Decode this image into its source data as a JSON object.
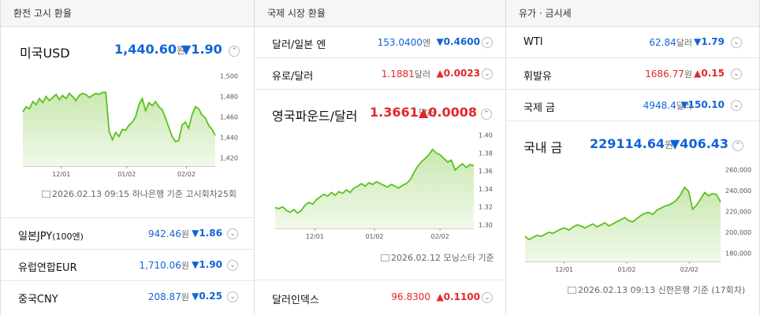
{
  "col1": {
    "header": "환전 고시 환율",
    "main": {
      "name": "미국USD",
      "value": "1,440.60",
      "unit": "원",
      "change": "▼1.90"
    },
    "chart": {
      "y_ticks": [
        "1,500",
        "1,480",
        "1,460",
        "1,440",
        "1,420"
      ],
      "x_ticks": [
        "12/01",
        "01/02",
        "02/02"
      ],
      "series": [
        1465,
        1470,
        1468,
        1475,
        1472,
        1478,
        1474,
        1480,
        1476,
        1479,
        1482,
        1477,
        1481,
        1478,
        1483,
        1480,
        1476,
        1481,
        1483,
        1482,
        1479,
        1481,
        1483,
        1482,
        1484,
        1484,
        1446,
        1438,
        1445,
        1441,
        1448,
        1447,
        1452,
        1455,
        1460,
        1472,
        1478,
        1466,
        1474,
        1471,
        1475,
        1470,
        1467,
        1459,
        1450,
        1441,
        1436,
        1437,
        1452,
        1455,
        1449,
        1462,
        1470,
        1468,
        1462,
        1459,
        1452,
        1448,
        1442
      ]
    },
    "footnote": "2026.02.13 09:15 하나은행 기준  고시회차25회",
    "rows": [
      {
        "name": "일본JPY",
        "name_sub": "(100엔)",
        "value": "942.46",
        "unit": "원",
        "change": "▼1.86"
      },
      {
        "name": "유럽연합EUR",
        "value": "1,710.06",
        "unit": "원",
        "change": "▼1.90"
      },
      {
        "name": "중국CNY",
        "value": "208.87",
        "unit": "원",
        "change": "▼0.25"
      }
    ]
  },
  "col2": {
    "header": "국제 시장 환율",
    "rows_top": [
      {
        "name": "달러/일본 엔",
        "value": "153.0400",
        "unit": "엔",
        "change": "▼0.4600",
        "color": "#1163d8"
      },
      {
        "name": "유로/달러",
        "value": "1.1881",
        "unit": "달러",
        "change": "▲0.0023",
        "color": "#e2272d"
      }
    ],
    "main": {
      "name": "영국파운드/달러",
      "value": "1.3661",
      "unit": "달러",
      "change": "▲0.0008"
    },
    "chart": {
      "y_ticks": [
        "1.40",
        "1.38",
        "1.36",
        "1.34",
        "1.32",
        "1.30"
      ],
      "x_ticks": [
        "12/01",
        "01/02",
        "02/02"
      ],
      "series": [
        1.319,
        1.318,
        1.32,
        1.316,
        1.314,
        1.317,
        1.313,
        1.316,
        1.322,
        1.325,
        1.323,
        1.328,
        1.331,
        1.334,
        1.332,
        1.336,
        1.333,
        1.337,
        1.335,
        1.339,
        1.336,
        1.341,
        1.343,
        1.346,
        1.343,
        1.347,
        1.345,
        1.348,
        1.346,
        1.344,
        1.342,
        1.345,
        1.343,
        1.341,
        1.344,
        1.346,
        1.35,
        1.358,
        1.365,
        1.37,
        1.374,
        1.378,
        1.384,
        1.38,
        1.378,
        1.374,
        1.37,
        1.372,
        1.361,
        1.365,
        1.368,
        1.364,
        1.367,
        1.366
      ]
    },
    "footnote": "2026.02.12 모닝스타 기준",
    "rows_bottom": [
      {
        "name": "달러인덱스",
        "value": "96.8300",
        "change": "▲0.1100",
        "color": "#e2272d"
      }
    ]
  },
  "col3": {
    "header": "유가 · 금시세",
    "rows_top": [
      {
        "name": "WTI",
        "value": "62.84",
        "unit": "달러",
        "change": "▼1.79",
        "color": "#1163d8"
      },
      {
        "name": "휘발유",
        "value": "1686.77",
        "unit": "원",
        "change": "▲0.15",
        "color": "#e2272d"
      },
      {
        "name": "국제 금",
        "value": "4948.4",
        "unit": "달러",
        "change": "▼150.10",
        "color": "#1163d8"
      }
    ],
    "main": {
      "name": "국내 금",
      "value": "229114.64",
      "unit": "원",
      "change": "▼406.43"
    },
    "chart": {
      "y_ticks": [
        "260,000",
        "240,000",
        "220,000",
        "200,000",
        "180,000"
      ],
      "x_ticks": [
        "12/01",
        "01/02",
        "02/02"
      ],
      "series": [
        196000,
        193000,
        195000,
        197000,
        196000,
        198000,
        200000,
        199000,
        201000,
        203000,
        204000,
        202000,
        205000,
        207000,
        206000,
        204000,
        206000,
        208000,
        205000,
        207000,
        209000,
        206000,
        208000,
        210000,
        212000,
        214000,
        211000,
        210000,
        213000,
        216000,
        218000,
        219000,
        217000,
        221000,
        223000,
        225000,
        226000,
        228000,
        231000,
        236000,
        243000,
        239000,
        222000,
        226000,
        232000,
        238000,
        235000,
        237000,
        236000,
        229000
      ]
    },
    "footnote": "2026.02.13 09:13 신한은행 기준 (17회차)"
  },
  "colors": {
    "up": "#e2272d",
    "down": "#1163d8",
    "line": "#5ac11c",
    "fill": "#dcefcc"
  }
}
